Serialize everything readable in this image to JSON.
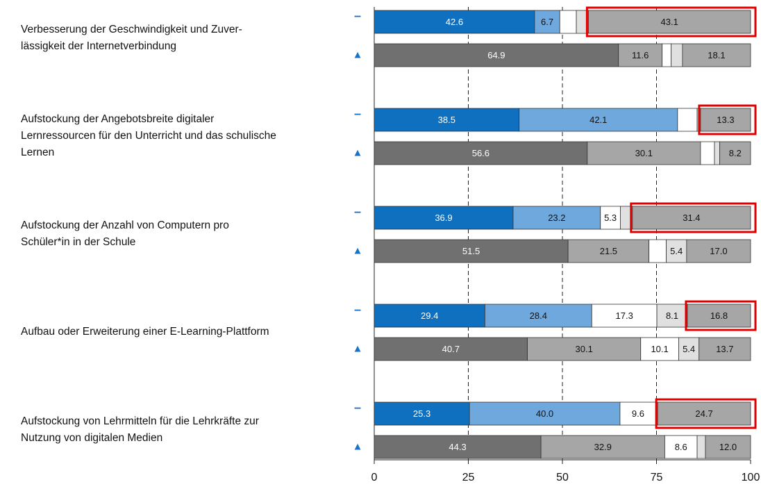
{
  "chart_data": {
    "type": "bar",
    "orientation": "horizontal",
    "stacked": true,
    "categories": [
      [
        "Verbesserung der Geschwindigkeit und Zuver-",
        "lässigkeit der Internetverbindung"
      ],
      [
        "Aufstockung der Angebotsbreite digitaler",
        "Lernressourcen für den Unterricht und das schulische",
        "Lernen"
      ],
      [
        "Aufstockung der Anzahl von Computern pro",
        "Schüler*in in der Schule"
      ],
      [
        "Aufbau oder Erweiterung einer E-Learning-Plattform"
      ],
      [
        "Aufstockung von Lehrmitteln für die Lehrkräfte zur",
        "Nutzung von digitalen Medien"
      ]
    ],
    "series": [
      {
        "marker": "–",
        "marker_color": "#1a72c4",
        "colors": [
          "#0f70c0",
          "#6fa8dc",
          "#ffffff",
          "#e0e0e0",
          "#a6a6a6"
        ],
        "values": [
          [
            42.6,
            6.7,
            4.4,
            3.2,
            43.1
          ],
          [
            38.5,
            42.1,
            5.2,
            0.9,
            13.3
          ],
          [
            36.9,
            23.2,
            5.3,
            3.2,
            31.4
          ],
          [
            29.4,
            28.4,
            17.3,
            8.1,
            16.8
          ],
          [
            25.3,
            40.0,
            9.6,
            0.4,
            24.7
          ]
        ],
        "value_labels": [
          [
            "42.6",
            "6.7",
            null,
            null,
            "43.1"
          ],
          [
            "38.5",
            "42.1",
            null,
            null,
            "13.3"
          ],
          [
            "36.9",
            "23.2",
            "5.3",
            null,
            "31.4"
          ],
          [
            "29.4",
            "28.4",
            "17.3",
            "8.1",
            "16.8"
          ],
          [
            "25.3",
            "40.0",
            "9.6",
            null,
            "24.7"
          ]
        ],
        "highlight_segment": 4
      },
      {
        "marker": "▲",
        "marker_color": "#1a72c4",
        "colors": [
          "#707070",
          "#a6a6a6",
          "#ffffff",
          "#e0e0e0",
          "#a6a6a6"
        ],
        "values": [
          [
            64.9,
            11.6,
            2.4,
            3.0,
            18.1
          ],
          [
            56.6,
            30.1,
            3.7,
            1.4,
            8.2
          ],
          [
            51.5,
            21.5,
            4.6,
            5.4,
            17.0
          ],
          [
            40.7,
            30.1,
            10.1,
            5.4,
            13.7
          ],
          [
            44.3,
            32.9,
            8.6,
            2.2,
            12.0
          ]
        ],
        "value_labels": [
          [
            "64.9",
            "11.6",
            null,
            null,
            "18.1"
          ],
          [
            "56.6",
            "30.1",
            null,
            null,
            "8.2"
          ],
          [
            "51.5",
            "21.5",
            null,
            "5.4",
            "17.0"
          ],
          [
            "40.7",
            "30.1",
            "10.1",
            "5.4",
            "13.7"
          ],
          [
            "44.3",
            "32.9",
            "8.6",
            null,
            "12.0"
          ]
        ]
      }
    ],
    "highlight_color": "#e00000",
    "light_label_segments": [
      0
    ],
    "xlim": [
      0,
      100
    ],
    "xticks": [
      0,
      25,
      50,
      75,
      100
    ],
    "grid": "dashed"
  }
}
